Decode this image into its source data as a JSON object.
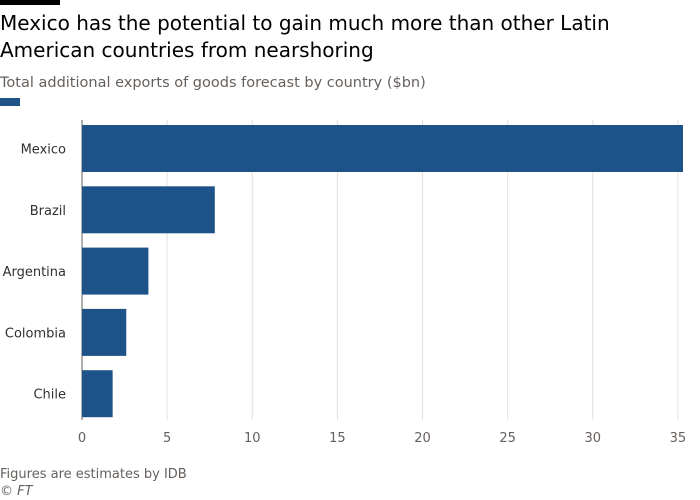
{
  "header": {
    "title": "Mexico has the potential to gain much more than other Latin American countries from nearshoring",
    "subtitle": "Total additional exports of goods forecast by country ($bn)"
  },
  "footer": {
    "note": "Figures are estimates by IDB",
    "source": "© FT"
  },
  "colors": {
    "bar": "#1e538a",
    "grid": "#e6dfd8",
    "axis": "#66605c",
    "label": "#33302e"
  },
  "chart_data": {
    "type": "bar",
    "orientation": "horizontal",
    "title": "Mexico has the potential to gain much more than other Latin American countries from nearshoring",
    "subtitle": "Total additional exports of goods forecast by country ($bn)",
    "xlabel": "",
    "ylabel": "",
    "categories": [
      "Mexico",
      "Brazil",
      "Argentina",
      "Colombia",
      "Chile"
    ],
    "series": [
      {
        "values": [
          35.3,
          7.8,
          3.9,
          2.6,
          1.8
        ]
      }
    ],
    "xlim": [
      0,
      35.3
    ],
    "xticks": [
      0,
      5,
      10,
      15,
      20,
      25,
      30,
      35
    ],
    "xtick_labels": [
      "0",
      "5",
      "10",
      "15",
      "20",
      "25",
      "30",
      "35"
    ],
    "grid": true,
    "legend": "top-left"
  }
}
